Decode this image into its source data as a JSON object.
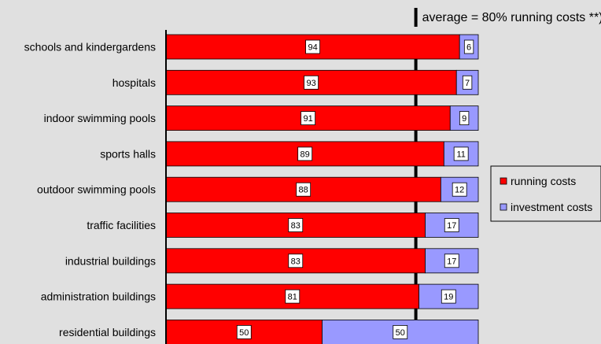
{
  "chart_data": {
    "type": "bar",
    "orientation": "horizontal",
    "stacked": true,
    "categories": [
      "schools and kindergardens",
      "hospitals",
      "indoor swimming pools",
      "sports halls",
      "outdoor swimming pools",
      "traffic facilities",
      "industrial buildings",
      "administration buildings",
      "residential buildings"
    ],
    "series": [
      {
        "name": "running costs",
        "color": "#ff0000",
        "values": [
          94,
          93,
          91,
          89,
          88,
          83,
          83,
          81,
          50
        ]
      },
      {
        "name": "investment costs",
        "color": "#9999ff",
        "values": [
          6,
          7,
          9,
          11,
          12,
          17,
          17,
          19,
          50
        ]
      }
    ],
    "xlim": [
      0,
      100
    ],
    "data_labels": true,
    "reference_line": {
      "value": 80,
      "label": "average = 80% running costs **)"
    },
    "legend_placement": "right",
    "grid": false,
    "title": "",
    "xlabel": "",
    "ylabel": ""
  }
}
